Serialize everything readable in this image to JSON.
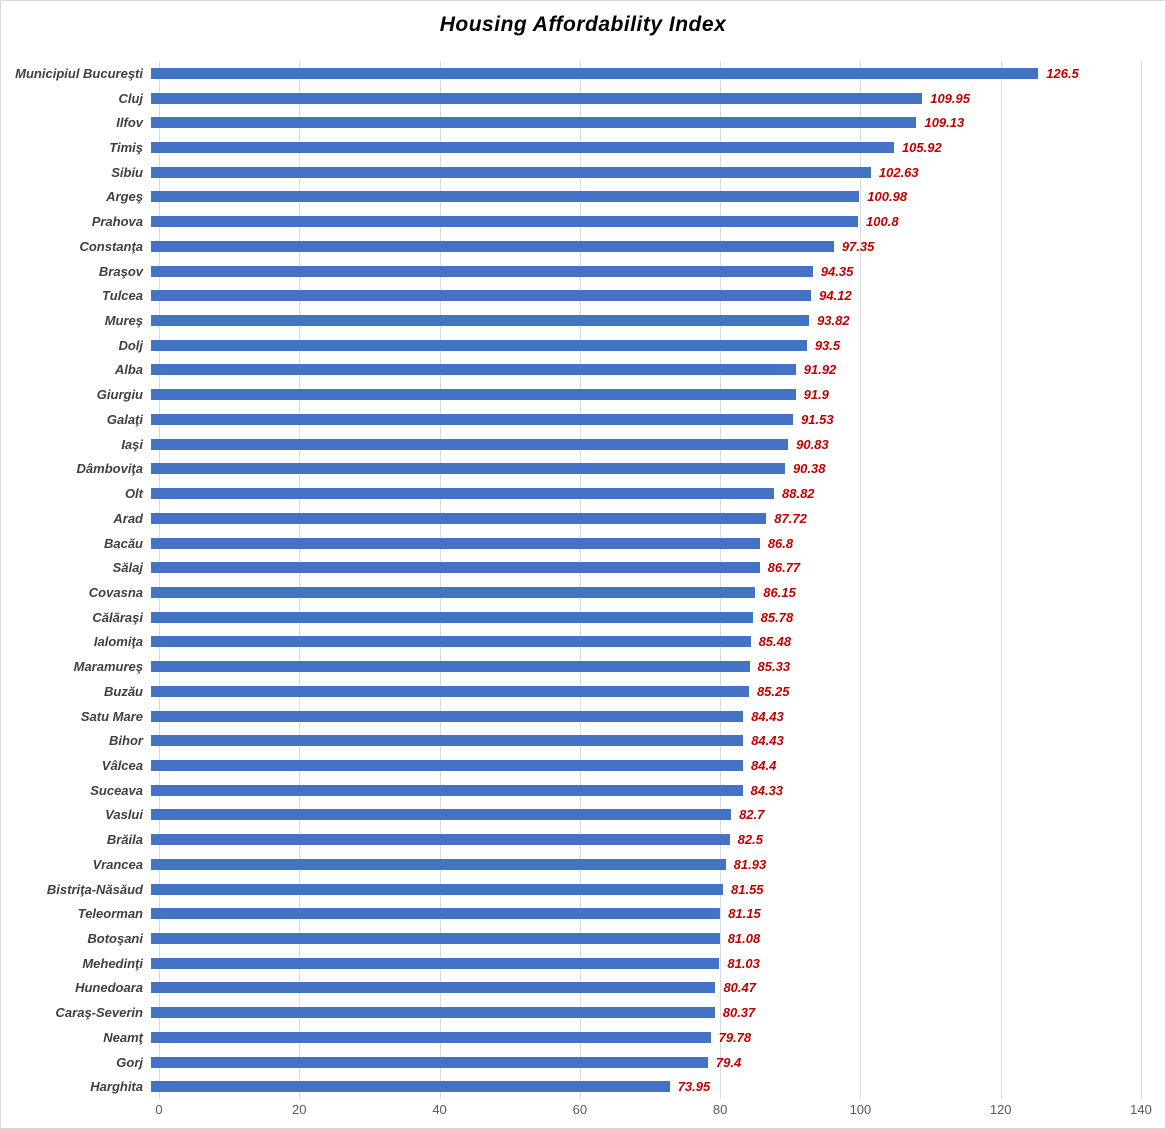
{
  "chart_data": {
    "type": "bar",
    "orientation": "horizontal",
    "title": "Housing Affordability Index",
    "categories": [
      "Municipiul Bucureşti",
      "Cluj",
      "Ilfov",
      "Timiş",
      "Sibiu",
      "Argeş",
      "Prahova",
      "Constanţa",
      "Braşov",
      "Tulcea",
      "Mureş",
      "Dolj",
      "Alba",
      "Giurgiu",
      "Galaţi",
      "Iaşi",
      "Dâmboviţa",
      "Olt",
      "Arad",
      "Bacău",
      "Sălaj",
      "Covasna",
      "Călăraşi",
      "Ialomiţa",
      "Maramureş",
      "Buzău",
      "Satu Mare",
      "Bihor",
      "Vâlcea",
      "Suceava",
      "Vaslui",
      "Brăila",
      "Vrancea",
      "Bistriţa-Năsăud",
      "Teleorman",
      "Botoşani",
      "Mehedinţi",
      "Hunedoara",
      "Caraş-Severin",
      "Neamţ",
      "Gorj",
      "Harghita"
    ],
    "values": [
      126.5,
      109.95,
      109.13,
      105.92,
      102.63,
      100.98,
      100.8,
      97.35,
      94.35,
      94.12,
      93.82,
      93.5,
      91.92,
      91.9,
      91.53,
      90.83,
      90.38,
      88.82,
      87.72,
      86.8,
      86.77,
      86.15,
      85.78,
      85.48,
      85.33,
      85.25,
      84.43,
      84.43,
      84.4,
      84.33,
      82.7,
      82.5,
      81.93,
      81.55,
      81.15,
      81.08,
      81.03,
      80.47,
      80.37,
      79.78,
      79.4,
      73.95
    ],
    "value_labels": [
      "126.5",
      "109.95",
      "109.13",
      "105.92",
      "102.63",
      "100.98",
      "100.8",
      "97.35",
      "94.35",
      "94.12",
      "93.82",
      "93.5",
      "91.92",
      "91.9",
      "91.53",
      "90.83",
      "90.38",
      "88.82",
      "87.72",
      "86.8",
      "86.77",
      "86.15",
      "85.78",
      "85.48",
      "85.33",
      "85.25",
      "84.43",
      "84.43",
      "84.4",
      "84.33",
      "82.7",
      "82.5",
      "81.93",
      "81.55",
      "81.15",
      "81.08",
      "81.03",
      "80.47",
      "80.37",
      "79.78",
      "79.4",
      "73.95"
    ],
    "xlabel": "",
    "ylabel": "",
    "xlim": [
      0,
      140
    ],
    "xticks": [
      0,
      20,
      40,
      60,
      80,
      100,
      120,
      140
    ],
    "grid": true,
    "legend_position": "none",
    "colors": {
      "bar": "#4472C4",
      "value_label": "#C00000",
      "category_label": "#404040",
      "axis_tick_label": "#595959",
      "gridline": "#D9D9D9",
      "background": "#FFFFFF"
    }
  }
}
